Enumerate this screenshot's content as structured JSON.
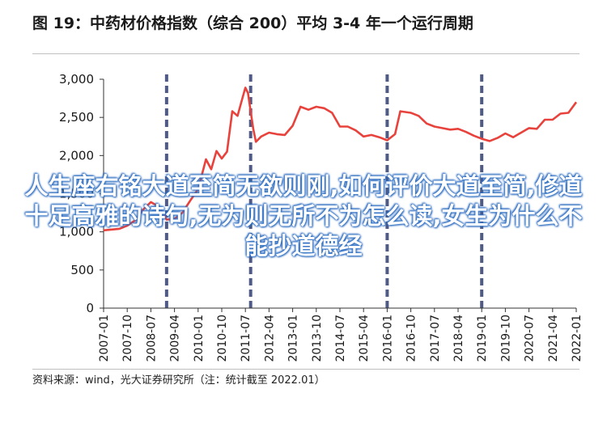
{
  "title": "图 19：中药材价格指数（综合 200）平均 3-4 年一个运行周期",
  "source": "资料来源：wind，光大证券研究所（注：统计截至 2022.01）",
  "overlay_text": "人生座右铭大道至简无欲则刚,如何评价大道至简,修道十足高雅的诗句,无为则无所不为怎么读,女生为什么不能抄道德经",
  "colors": {
    "line": "#e8423c",
    "divider": "#4f5a85",
    "axis": "#333333"
  },
  "chart_data": {
    "type": "line",
    "title": "图 19：中药材价格指数（综合 200）平均 3-4 年一个运行周期",
    "xlabel": "",
    "ylabel": "",
    "ylim": [
      0,
      3000
    ],
    "yticks": [
      0,
      500,
      1000,
      1500,
      2000,
      2500,
      3000
    ],
    "ytick_labels": [
      "0",
      "500",
      "1,000",
      "1,500",
      "2,000",
      "2,500",
      "3,000"
    ],
    "xticks": [
      "2007-01",
      "2007-10",
      "2008-07",
      "2009-04",
      "2010-01",
      "2010-10",
      "2011-07",
      "2012-04",
      "2013-01",
      "2013-10",
      "2014-07",
      "2015-04",
      "2016-01",
      "2016-10",
      "2017-07",
      "2018-04",
      "2019-01",
      "2019-10",
      "2020-07",
      "2021-04",
      "2022-01"
    ],
    "grid": false,
    "legend": "none",
    "cycle_markers": [
      "2009-01",
      "2011-09",
      "2016-01",
      "2019-01"
    ],
    "series": [
      {
        "points": [
          [
            "2007-01",
            1020
          ],
          [
            "2007-07",
            1040
          ],
          [
            "2007-10",
            1080
          ],
          [
            "2008-01",
            1150
          ],
          [
            "2008-04",
            1290
          ],
          [
            "2008-07",
            1390
          ],
          [
            "2008-10",
            1330
          ],
          [
            "2009-01",
            1160
          ],
          [
            "2009-04",
            1170
          ],
          [
            "2009-07",
            1250
          ],
          [
            "2009-10",
            1410
          ],
          [
            "2010-01",
            1560
          ],
          [
            "2010-04",
            1950
          ],
          [
            "2010-06",
            1820
          ],
          [
            "2010-08",
            2060
          ],
          [
            "2010-10",
            1960
          ],
          [
            "2010-12",
            2050
          ],
          [
            "2011-02",
            2580
          ],
          [
            "2011-04",
            2520
          ],
          [
            "2011-06",
            2770
          ],
          [
            "2011-07",
            2890
          ],
          [
            "2011-08",
            2820
          ],
          [
            "2011-10",
            2350
          ],
          [
            "2011-11",
            2180
          ],
          [
            "2012-01",
            2250
          ],
          [
            "2012-04",
            2300
          ],
          [
            "2012-07",
            2280
          ],
          [
            "2012-10",
            2270
          ],
          [
            "2013-01",
            2390
          ],
          [
            "2013-04",
            2640
          ],
          [
            "2013-07",
            2600
          ],
          [
            "2013-10",
            2640
          ],
          [
            "2014-01",
            2620
          ],
          [
            "2014-04",
            2560
          ],
          [
            "2014-07",
            2380
          ],
          [
            "2014-10",
            2380
          ],
          [
            "2015-01",
            2330
          ],
          [
            "2015-04",
            2250
          ],
          [
            "2015-07",
            2270
          ],
          [
            "2015-10",
            2240
          ],
          [
            "2016-01",
            2200
          ],
          [
            "2016-04",
            2280
          ],
          [
            "2016-06",
            2580
          ],
          [
            "2016-10",
            2560
          ],
          [
            "2017-01",
            2520
          ],
          [
            "2017-04",
            2420
          ],
          [
            "2017-07",
            2380
          ],
          [
            "2017-10",
            2360
          ],
          [
            "2018-01",
            2340
          ],
          [
            "2018-04",
            2350
          ],
          [
            "2018-07",
            2310
          ],
          [
            "2018-10",
            2260
          ],
          [
            "2019-01",
            2220
          ],
          [
            "2019-04",
            2190
          ],
          [
            "2019-07",
            2230
          ],
          [
            "2019-10",
            2290
          ],
          [
            "2020-01",
            2240
          ],
          [
            "2020-04",
            2300
          ],
          [
            "2020-07",
            2360
          ],
          [
            "2020-10",
            2350
          ],
          [
            "2021-01",
            2470
          ],
          [
            "2021-04",
            2470
          ],
          [
            "2021-07",
            2550
          ],
          [
            "2021-10",
            2560
          ],
          [
            "2022-01",
            2700
          ]
        ]
      }
    ]
  }
}
